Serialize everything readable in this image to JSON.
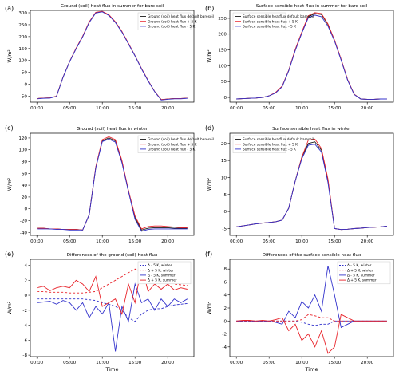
{
  "chart_data": [
    {
      "type": "line",
      "panel_label": "(a)",
      "title": "Ground (soil) heat flux in summer for bare soil",
      "ylabel": "W/m²",
      "xlabel": "",
      "xticks": [
        0,
        5,
        10,
        15,
        20
      ],
      "xtick_labels": [
        "00:00",
        "05:00",
        "10:00",
        "15:00",
        "20:00"
      ],
      "yticks": [
        -50,
        0,
        50,
        100,
        150,
        200,
        250,
        300
      ],
      "ylim": [
        -75,
        310
      ],
      "xlim": [
        -1,
        24
      ],
      "legend": "top-right",
      "x": [
        0,
        1,
        2,
        3,
        4,
        5,
        6,
        7,
        8,
        9,
        10,
        11,
        12,
        13,
        14,
        15,
        16,
        17,
        18,
        19,
        20,
        21,
        22,
        23
      ],
      "series": [
        {
          "name": "Ground (soil) heat flux default baresoil",
          "color": "#1a1a1a",
          "values": [
            -60,
            -58,
            -57,
            -50,
            30,
            95,
            150,
            200,
            260,
            300,
            305,
            290,
            260,
            220,
            170,
            120,
            65,
            15,
            -30,
            -65,
            -62,
            -60,
            -60,
            -58
          ]
        },
        {
          "name": "Ground (soil) heat flux + 5 K",
          "color": "#e8232a",
          "values": [
            -60,
            -58,
            -57,
            -50,
            30,
            95,
            152,
            202,
            262,
            302,
            306,
            292,
            262,
            222,
            172,
            120,
            66,
            16,
            -30,
            -64,
            -62,
            -60,
            -60,
            -58
          ]
        },
        {
          "name": "Ground (soil) heat flux - 5 K",
          "color": "#3333cc",
          "values": [
            -61,
            -59,
            -58,
            -51,
            29,
            94,
            149,
            199,
            259,
            299,
            304,
            289,
            259,
            219,
            169,
            119,
            64,
            14,
            -31,
            -66,
            -63,
            -61,
            -61,
            -59
          ]
        }
      ]
    },
    {
      "type": "line",
      "panel_label": "(b)",
      "title": "Surface sensible heat flux in summer for bare soil",
      "ylabel": "W/m²",
      "xlabel": "",
      "xticks": [
        0,
        5,
        10,
        15,
        20
      ],
      "xtick_labels": [
        "00:00",
        "05:00",
        "10:00",
        "15:00",
        "20:00"
      ],
      "yticks": [
        0,
        50,
        100,
        150,
        200,
        250
      ],
      "ylim": [
        -15,
        275
      ],
      "xlim": [
        -1,
        24
      ],
      "legend": "top-left",
      "x": [
        0,
        1,
        2,
        3,
        4,
        5,
        6,
        7,
        8,
        9,
        10,
        11,
        12,
        13,
        14,
        15,
        16,
        17,
        18,
        19,
        20,
        21,
        22,
        23
      ],
      "series": [
        {
          "name": "Surface sensible heatflux default baresoil",
          "color": "#1a1a1a",
          "values": [
            -5,
            -4,
            -3,
            -2,
            0,
            5,
            15,
            35,
            85,
            150,
            205,
            255,
            265,
            262,
            230,
            180,
            120,
            55,
            10,
            -5,
            -6,
            -6,
            -5,
            -5
          ]
        },
        {
          "name": "Surface sensible heat flux + 5 K",
          "color": "#e8232a",
          "values": [
            -5,
            -4,
            -3,
            -2,
            0,
            5,
            16,
            36,
            86,
            152,
            207,
            258,
            268,
            265,
            232,
            181,
            121,
            56,
            10,
            -5,
            -6,
            -6,
            -5,
            -5
          ]
        },
        {
          "name": "Surface sensible heat flux - 5 K",
          "color": "#3333cc",
          "values": [
            -5,
            -4,
            -3,
            -2,
            0,
            5,
            14,
            34,
            84,
            148,
            203,
            252,
            260,
            255,
            225,
            178,
            118,
            54,
            9,
            -5,
            -6,
            -6,
            -5,
            -5
          ]
        }
      ]
    },
    {
      "type": "line",
      "panel_label": "(c)",
      "title": "Ground (soil) heat flux in winter",
      "ylabel": "W/m²",
      "xlabel": "",
      "xticks": [
        0,
        5,
        10,
        15,
        20
      ],
      "xtick_labels": [
        "00:00",
        "05:00",
        "10:00",
        "15:00",
        "20:00"
      ],
      "yticks": [
        -40,
        -20,
        0,
        20,
        40,
        60,
        80,
        100,
        120
      ],
      "ylim": [
        -45,
        128
      ],
      "xlim": [
        -1,
        24
      ],
      "legend": "top-right",
      "x": [
        0,
        1,
        2,
        3,
        4,
        5,
        6,
        7,
        8,
        9,
        10,
        11,
        12,
        13,
        14,
        15,
        16,
        17,
        18,
        19,
        20,
        21,
        22,
        23
      ],
      "series": [
        {
          "name": "Ground (soil) heat flux default baresoil",
          "color": "#1a1a1a",
          "values": [
            -33,
            -33,
            -34,
            -34,
            -35,
            -35,
            -35,
            -36,
            -10,
            70,
            115,
            120,
            115,
            80,
            30,
            -15,
            -36,
            -33,
            -32,
            -32,
            -32,
            -33,
            -33,
            -33
          ]
        },
        {
          "name": "Ground (soil) heat flux + 5 K",
          "color": "#e8232a",
          "values": [
            -33,
            -33,
            -34,
            -34,
            -35,
            -35,
            -35,
            -36,
            -10,
            71,
            117,
            122,
            117,
            82,
            31,
            -12,
            -34,
            -30,
            -29,
            -29,
            -30,
            -31,
            -32,
            -32
          ]
        },
        {
          "name": "Ground (soil) heat flux - 5 K",
          "color": "#3333cc",
          "values": [
            -34,
            -34,
            -34,
            -35,
            -35,
            -36,
            -36,
            -36,
            -10,
            69,
            114,
            118,
            113,
            78,
            29,
            -18,
            -38,
            -35,
            -34,
            -34,
            -34,
            -34,
            -34,
            -34
          ]
        }
      ]
    },
    {
      "type": "line",
      "panel_label": "(d)",
      "title": "Surface sensible heat flux in winter",
      "ylabel": "W/m²",
      "xlabel": "",
      "xticks": [
        0,
        5,
        10,
        15,
        20
      ],
      "xtick_labels": [
        "00:00",
        "05:00",
        "10:00",
        "15:00",
        "20:00"
      ],
      "yticks": [
        -5,
        0,
        5,
        10,
        15,
        20
      ],
      "ylim": [
        -7,
        23
      ],
      "xlim": [
        -1,
        24
      ],
      "legend": "top-left",
      "x": [
        0,
        1,
        2,
        3,
        4,
        5,
        6,
        7,
        8,
        9,
        10,
        11,
        12,
        13,
        14,
        15,
        16,
        17,
        18,
        19,
        20,
        21,
        22,
        23
      ],
      "series": [
        {
          "name": "Surface sensible heatflux default baresoil",
          "color": "#1a1a1a",
          "values": [
            -4.5,
            -4.2,
            -3.9,
            -3.6,
            -3.4,
            -3.2,
            -3.0,
            -2.5,
            1,
            9,
            16,
            20,
            20.5,
            18,
            9,
            -5,
            -5.3,
            -5.2,
            -5.0,
            -4.9,
            -4.7,
            -4.6,
            -4.5,
            -4.3
          ]
        },
        {
          "name": "Surface sensible heat flux + 5 K",
          "color": "#e8232a",
          "values": [
            -4.5,
            -4.2,
            -3.9,
            -3.6,
            -3.4,
            -3.2,
            -3.0,
            -2.5,
            1,
            9,
            16,
            21,
            21.3,
            18.5,
            9.5,
            -5,
            -5.3,
            -5.2,
            -5.0,
            -4.9,
            -4.7,
            -4.6,
            -4.5,
            -4.3
          ]
        },
        {
          "name": "Surface sensible heat flux - 5 K",
          "color": "#3333cc",
          "values": [
            -4.5,
            -4.2,
            -3.9,
            -3.6,
            -3.4,
            -3.2,
            -3.0,
            -2.5,
            1,
            9,
            15.5,
            19.5,
            19.8,
            17.5,
            8.5,
            -5,
            -5.3,
            -5.2,
            -5.0,
            -4.9,
            -4.7,
            -4.6,
            -4.5,
            -4.3
          ]
        }
      ]
    },
    {
      "type": "line",
      "panel_label": "(e)",
      "title": "Differences of the ground (soil) heat flux",
      "ylabel": "W/m²",
      "xlabel": "Time",
      "xticks": [
        0,
        5,
        10,
        15,
        20
      ],
      "xtick_labels": [
        "00:00",
        "05:00",
        "10:00",
        "15:00",
        "20:00"
      ],
      "yticks": [
        -8,
        -6,
        -4,
        -2,
        0,
        2,
        4
      ],
      "ylim": [
        -8.2,
        4.8
      ],
      "xlim": [
        -1,
        24
      ],
      "legend": "top-right",
      "x": [
        0,
        1,
        2,
        3,
        4,
        5,
        6,
        7,
        8,
        9,
        10,
        11,
        12,
        13,
        14,
        15,
        16,
        17,
        18,
        19,
        20,
        21,
        22,
        23
      ],
      "series": [
        {
          "name": "Δ - 5 K, winter",
          "color": "#3333cc",
          "dash": true,
          "values": [
            -0.5,
            -0.5,
            -0.5,
            -0.5,
            -0.5,
            -0.5,
            -0.5,
            -0.5,
            -0.6,
            -0.7,
            -1.0,
            -1.2,
            -1.5,
            -2.0,
            -3.0,
            -3.5,
            -2.5,
            -2.0,
            -1.8,
            -1.8,
            -1.5,
            -1.3,
            -1.2,
            -1.1
          ]
        },
        {
          "name": "Δ + 5 K, winter",
          "color": "#e8232a",
          "dash": true,
          "values": [
            0.5,
            0.5,
            0.4,
            0.4,
            0.4,
            0.3,
            0.3,
            0.3,
            0.4,
            0.5,
            1.0,
            1.5,
            2.0,
            2.5,
            3.0,
            3.5,
            3.0,
            2.5,
            2.0,
            2.0,
            1.8,
            1.5,
            1.4,
            1.3
          ]
        },
        {
          "name": "Δ - 5 K, summer",
          "color": "#3333cc",
          "dash": false,
          "values": [
            -1.0,
            -0.9,
            -0.8,
            -1.2,
            -0.7,
            -1.0,
            -2.0,
            -1.0,
            -3.0,
            -1.5,
            -2.5,
            -1.0,
            -7.5,
            -1.5,
            -3.5,
            1.5,
            -1.0,
            -0.5,
            -2.0,
            -0.5,
            -1.5,
            -0.5,
            -1.0,
            -0.5
          ]
        },
        {
          "name": "Δ + 5 K, summer",
          "color": "#e8232a",
          "dash": false,
          "values": [
            1.0,
            1.2,
            0.6,
            1.0,
            1.2,
            1.0,
            2.0,
            1.5,
            0.5,
            2.5,
            -1.5,
            -1.0,
            -0.5,
            -2.5,
            1.5,
            -1.0,
            4.0,
            0.5,
            1.5,
            0.8,
            1.5,
            0.7,
            1.0,
            0.8
          ]
        }
      ]
    },
    {
      "type": "line",
      "panel_label": "(f)",
      "title": "Differences of the surface sensible heat flux",
      "ylabel": "W/m²",
      "xlabel": "Time",
      "xticks": [
        0,
        5,
        10,
        15,
        20
      ],
      "xtick_labels": [
        "00:00",
        "05:00",
        "10:00",
        "15:00",
        "20:00"
      ],
      "yticks": [
        -4,
        -2,
        0,
        2,
        4,
        6,
        8
      ],
      "ylim": [
        -5.5,
        9.5
      ],
      "xlim": [
        -1,
        24
      ],
      "legend": "top-right",
      "x": [
        0,
        1,
        2,
        3,
        4,
        5,
        6,
        7,
        8,
        9,
        10,
        11,
        12,
        13,
        14,
        15,
        16,
        17,
        18,
        19,
        20,
        21,
        22,
        23
      ],
      "series": [
        {
          "name": "Δ - 5 K, winter",
          "color": "#3333cc",
          "dash": true,
          "values": [
            0,
            0,
            0,
            0,
            0,
            0,
            0,
            0,
            0,
            0,
            -0.2,
            -0.5,
            -0.7,
            -0.5,
            -0.5,
            0,
            0,
            0,
            0,
            0,
            0,
            0,
            0,
            0
          ]
        },
        {
          "name": "Δ + 5 K, winter",
          "color": "#e8232a",
          "dash": true,
          "values": [
            0,
            0,
            0,
            0,
            0,
            0,
            0,
            0,
            0,
            0,
            0.2,
            1.0,
            0.8,
            0.5,
            0.5,
            0,
            0,
            0,
            0,
            0,
            0,
            0,
            0,
            0
          ]
        },
        {
          "name": "Δ - 5 K, summer",
          "color": "#3333cc",
          "dash": false,
          "values": [
            0,
            -0.1,
            -0.1,
            0,
            -0.1,
            0,
            -0.2,
            -0.5,
            1.5,
            0.5,
            3.0,
            2.0,
            4.0,
            1.5,
            8.5,
            4.0,
            -1.0,
            -0.5,
            0,
            0,
            0,
            0,
            0,
            0
          ]
        },
        {
          "name": "Δ + 5 K, summer",
          "color": "#e8232a",
          "dash": false,
          "values": [
            0,
            0.1,
            0.1,
            0,
            0.1,
            0,
            0.2,
            0.5,
            -1.5,
            -0.5,
            -3.0,
            -2.0,
            -4.0,
            -1.5,
            -5.0,
            -4.0,
            1.0,
            0.5,
            0,
            0,
            0,
            0,
            0,
            0
          ]
        }
      ]
    }
  ]
}
